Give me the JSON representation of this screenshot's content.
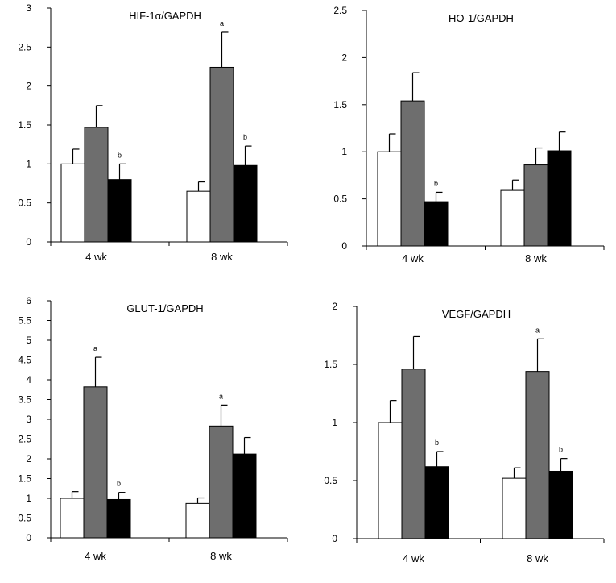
{
  "colors": {
    "series": [
      "#ffffff",
      "#6e6e6e",
      "#000000"
    ],
    "axis": "#000000"
  },
  "chart_data": [
    {
      "type": "bar",
      "title": "HIF-1α/GAPDH",
      "categories": [
        "4 wk",
        "8 wk"
      ],
      "ylim": [
        0,
        3
      ],
      "yticks": [
        "0",
        "0.5",
        "1",
        "1.5",
        "2",
        "2.5",
        "3"
      ],
      "series": [
        {
          "values": [
            1.0,
            0.65
          ],
          "errors": [
            0.19,
            0.12
          ],
          "annotations": [
            "",
            ""
          ]
        },
        {
          "values": [
            1.47,
            2.24
          ],
          "errors": [
            0.28,
            0.45
          ],
          "annotations": [
            "",
            "a"
          ]
        },
        {
          "values": [
            0.8,
            0.98
          ],
          "errors": [
            0.2,
            0.25
          ],
          "annotations": [
            "b",
            "b"
          ]
        }
      ]
    },
    {
      "type": "bar",
      "title": "HO-1/GAPDH",
      "categories": [
        "4 wk",
        "8 wk"
      ],
      "ylim": [
        0,
        2.5
      ],
      "yticks": [
        "0",
        "0.5",
        "1",
        "1.5",
        "2",
        "2.5"
      ],
      "series": [
        {
          "values": [
            1.0,
            0.59
          ],
          "errors": [
            0.19,
            0.11
          ],
          "annotations": [
            "",
            ""
          ]
        },
        {
          "values": [
            1.54,
            0.86
          ],
          "errors": [
            0.3,
            0.18
          ],
          "annotations": [
            "",
            ""
          ]
        },
        {
          "values": [
            0.47,
            1.01
          ],
          "errors": [
            0.1,
            0.2
          ],
          "annotations": [
            "b",
            ""
          ]
        }
      ]
    },
    {
      "type": "bar",
      "title": "GLUT-1/GAPDH",
      "categories": [
        "4 wk",
        "8 wk"
      ],
      "ylim": [
        0,
        6
      ],
      "yticks": [
        "0",
        "0.5",
        "1",
        "1.5",
        "2",
        "2.5",
        "3",
        "3.5",
        "4",
        "4.5",
        "5",
        "5.5",
        "6"
      ],
      "series": [
        {
          "values": [
            1.0,
            0.87
          ],
          "errors": [
            0.17,
            0.14
          ],
          "annotations": [
            "",
            ""
          ]
        },
        {
          "values": [
            3.82,
            2.83
          ],
          "errors": [
            0.75,
            0.53
          ],
          "annotations": [
            "a",
            "a"
          ]
        },
        {
          "values": [
            0.97,
            2.12
          ],
          "errors": [
            0.18,
            0.42
          ],
          "annotations": [
            "b",
            ""
          ]
        }
      ]
    },
    {
      "type": "bar",
      "title": "VEGF/GAPDH",
      "categories": [
        "4 wk",
        "8 wk"
      ],
      "ylim": [
        0,
        2
      ],
      "yticks": [
        "0",
        "0.5",
        "1",
        "1.5",
        "2"
      ],
      "series": [
        {
          "values": [
            1.0,
            0.52
          ],
          "errors": [
            0.19,
            0.09
          ],
          "annotations": [
            "",
            ""
          ]
        },
        {
          "values": [
            1.46,
            1.44
          ],
          "errors": [
            0.28,
            0.28
          ],
          "annotations": [
            "",
            "a"
          ]
        },
        {
          "values": [
            0.62,
            0.58
          ],
          "errors": [
            0.13,
            0.11
          ],
          "annotations": [
            "b",
            "b"
          ]
        }
      ]
    }
  ]
}
